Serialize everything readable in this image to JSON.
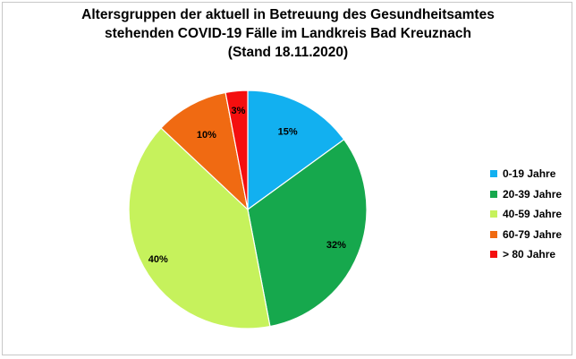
{
  "chart_data": {
    "type": "pie",
    "title_lines": [
      "Altersgruppen der aktuell in Betreuung des Gesundheitsamtes",
      "stehenden COVID-19 Fälle im Landkreis Bad Kreuznach",
      "(Stand 18.11.2020)"
    ],
    "categories": [
      "0-19 Jahre",
      "20-39 Jahre",
      "40-59 Jahre",
      "60-79 Jahre",
      "> 80 Jahre"
    ],
    "values": [
      15,
      32,
      40,
      10,
      3
    ],
    "labels": [
      "15%",
      "32%",
      "40%",
      "10%",
      "3%"
    ],
    "colors": [
      "#12b0f0",
      "#16a84d",
      "#c6f25c",
      "#f06a12",
      "#f40f0f"
    ],
    "legend_position": "right"
  }
}
